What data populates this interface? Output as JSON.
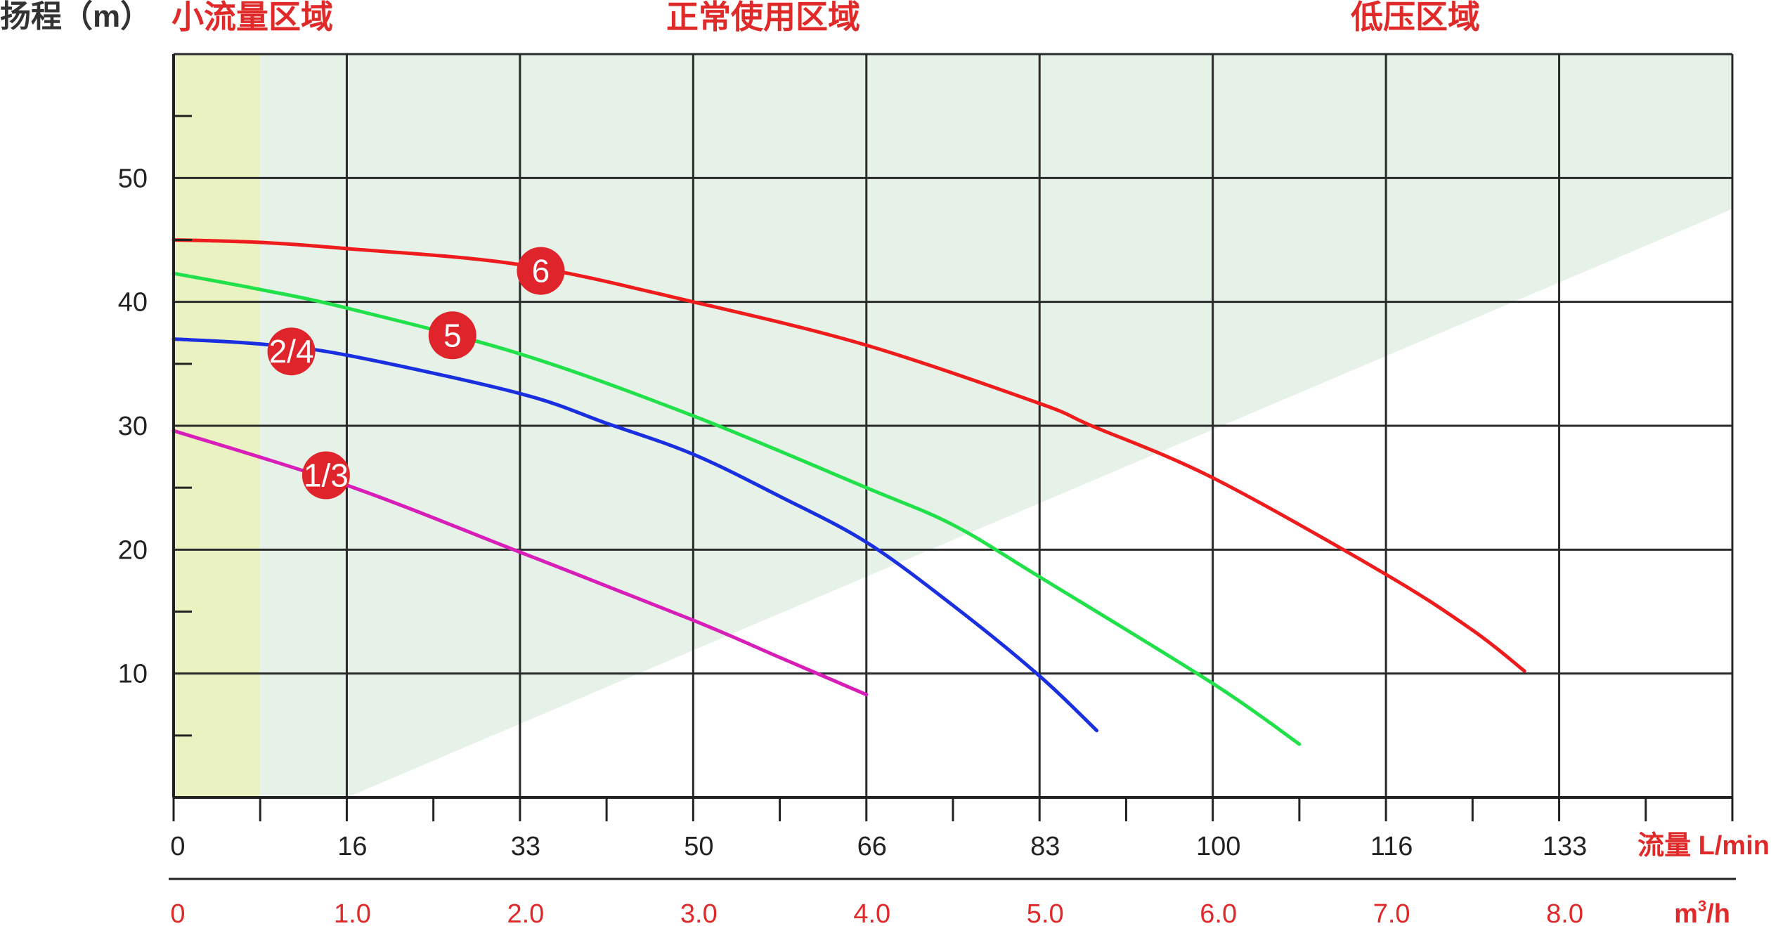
{
  "chart_data": {
    "type": "line",
    "ylabel": "扬程（m）",
    "xlabel_primary": "流量 L/min",
    "xlabel_secondary_base": "m",
    "xlabel_secondary_sup": "3",
    "xlabel_secondary_tail": "/h",
    "x_lmin_ticks": [
      "0",
      "16",
      "33",
      "50",
      "66",
      "83",
      "100",
      "116",
      "133"
    ],
    "x_m3h_ticks": [
      "0",
      "1.0",
      "2.0",
      "3.0",
      "4.0",
      "5.0",
      "6.0",
      "7.0",
      "8.0"
    ],
    "y_tick_labels": [
      "10",
      "20",
      "30",
      "40",
      "50"
    ],
    "xlim": [
      0,
      9
    ],
    "ylim": [
      0,
      60
    ],
    "x_grid": [
      0,
      1,
      2,
      3,
      4,
      5,
      6,
      7,
      8,
      9
    ],
    "x_minor_ticks": [
      0.5,
      1.5,
      2.5,
      3.5,
      4.5,
      5.5,
      6.5,
      7.5,
      8.5
    ],
    "y_grid": [
      10,
      20,
      30,
      40,
      50,
      60
    ],
    "y_minor_ticks": [
      5,
      15,
      25,
      35,
      45,
      55
    ],
    "grid": true,
    "regions": [
      {
        "label": "小流量区域",
        "x_from": 0,
        "x_to": 0.5,
        "color": "#eaf2c2"
      },
      {
        "label": "正常使用区域",
        "color": "#e6f2e8",
        "x_from": 0.5,
        "x_to": 9,
        "lower_boundary": [
          [
            0.5,
            0
          ],
          [
            1.0,
            0
          ],
          [
            9,
            47.5
          ]
        ]
      },
      {
        "label": "低压区域"
      }
    ],
    "series": [
      {
        "name": "6",
        "color": "#ee1c1c",
        "label_at": [
          2.12,
          42.5
        ],
        "points": [
          [
            0,
            45
          ],
          [
            0.5,
            44.8
          ],
          [
            1.0,
            44.3
          ],
          [
            2.0,
            43.0
          ],
          [
            3.0,
            40.0
          ],
          [
            4.0,
            36.5
          ],
          [
            5.0,
            31.8
          ],
          [
            5.3,
            30.0
          ],
          [
            6.0,
            25.8
          ],
          [
            7.0,
            18.0
          ],
          [
            7.5,
            13.5
          ],
          [
            7.8,
            10.2
          ]
        ]
      },
      {
        "name": "5",
        "color": "#22e04a",
        "label_at": [
          1.61,
          37.3
        ],
        "points": [
          [
            0,
            42.3
          ],
          [
            0.5,
            41.0
          ],
          [
            1.0,
            39.5
          ],
          [
            2.0,
            35.8
          ],
          [
            3.0,
            30.8
          ],
          [
            4.0,
            25.0
          ],
          [
            4.5,
            22.0
          ],
          [
            5.0,
            17.8
          ],
          [
            6.0,
            9.2
          ],
          [
            6.5,
            4.3
          ]
        ]
      },
      {
        "name": "2/4",
        "color": "#1a2fe0",
        "label_at": [
          0.68,
          36.0
        ],
        "points": [
          [
            0,
            37.0
          ],
          [
            0.5,
            36.6
          ],
          [
            1.0,
            35.7
          ],
          [
            2.0,
            32.6
          ],
          [
            2.5,
            30.2
          ],
          [
            3.0,
            27.7
          ],
          [
            3.5,
            24.3
          ],
          [
            4.0,
            20.6
          ],
          [
            4.5,
            15.5
          ],
          [
            5.0,
            9.8
          ],
          [
            5.33,
            5.4
          ]
        ]
      },
      {
        "name": "1/3",
        "color": "#d81eb8",
        "label_at": [
          0.88,
          26.0
        ],
        "points": [
          [
            0,
            29.6
          ],
          [
            1.0,
            25.2
          ],
          [
            2.0,
            19.8
          ],
          [
            3.0,
            14.3
          ],
          [
            3.5,
            11.3
          ],
          [
            4.0,
            8.3
          ]
        ]
      }
    ]
  }
}
